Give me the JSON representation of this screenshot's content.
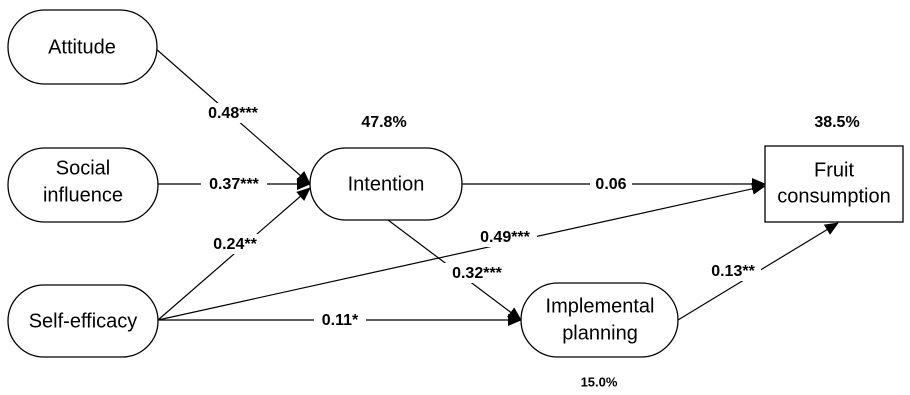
{
  "nodes": {
    "attitude": {
      "lines": [
        "Attitude"
      ]
    },
    "social_influence": {
      "lines": [
        "Social",
        "influence"
      ]
    },
    "self_efficacy": {
      "lines": [
        "Self-efficacy"
      ]
    },
    "intention": {
      "lines": [
        "Intention"
      ]
    },
    "implemental_planning": {
      "lines": [
        "Implemental",
        "planning"
      ]
    },
    "fruit_consumption": {
      "lines": [
        "Fruit",
        "consumption"
      ]
    }
  },
  "paths": {
    "attitude_intention": "0.48***",
    "social_intention": "0.37***",
    "selfeff_intention": "0.24**",
    "intention_fruit": "0.06",
    "selfeff_fruit": "0.49***",
    "intention_planning": "0.32***",
    "selfeff_planning": "0.11*",
    "planning_fruit": "0.13**"
  },
  "explained_variance": {
    "intention": "47.8%",
    "fruit_consumption": "38.5%",
    "implemental_planning": "15.0%"
  }
}
